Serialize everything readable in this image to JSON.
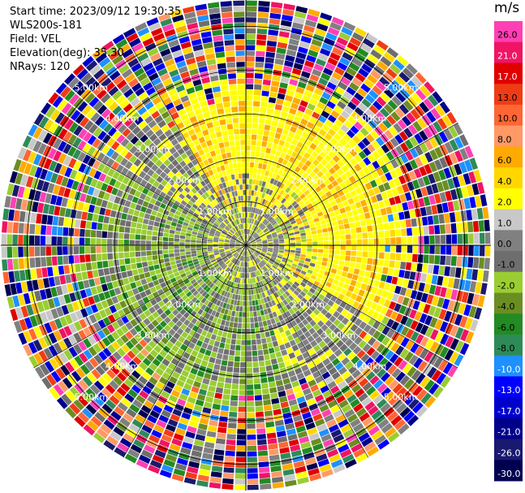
{
  "header": {
    "start_time": "Start time: 2023/09/12 19:30:35",
    "instrument": "WLS200s-181",
    "field": "Field: VEL",
    "elevation": "Elevation(deg): 35.30",
    "nrays": "NRays: 120"
  },
  "chart_data": {
    "type": "heatmap",
    "projection": "ppi-polar",
    "field": "VEL",
    "n_rays": 120,
    "elevation_deg": 35.3,
    "max_range_km": 5.6,
    "range_rings_km": [
      1,
      2,
      3,
      4,
      5
    ],
    "range_labels": [
      "1.00km",
      "2.00km",
      "3.00km",
      "4.00km",
      "5.00km"
    ],
    "colorbar": {
      "unit": "m/s",
      "ticks": [
        "26.0",
        "21.0",
        "17.0",
        "13.0",
        "10.0",
        "8.0",
        "6.0",
        "4.0",
        "2.0",
        "1.0",
        "0.0",
        "-1.0",
        "-2.0",
        "-4.0",
        "-6.0",
        "-8.0",
        "-10.0",
        "-13.0",
        "-17.0",
        "-21.0",
        "-26.0",
        "-30.0"
      ],
      "colors": [
        "#ff3fb4",
        "#f01464",
        "#e00000",
        "#f03c14",
        "#ff6633",
        "#ff9966",
        "#ffaa00",
        "#ffd700",
        "#ffff00",
        "#c8c8c8",
        "#808080",
        "#6e6e6e",
        "#9acd32",
        "#6b8e23",
        "#228b22",
        "#2e8b57",
        "#1e90ff",
        "#0000ff",
        "#0000cd",
        "#00008b",
        "#191970",
        "#000050"
      ]
    },
    "velocity_pattern": {
      "near_field": "mixed -2 to 0 m/s (gray / yellow-green)",
      "north_east": "positive 2 to 6 m/s (yellow / orange)",
      "south_west": "negative -2 to -6 m/s (green)",
      "far_field": "noisy full-range values"
    }
  }
}
